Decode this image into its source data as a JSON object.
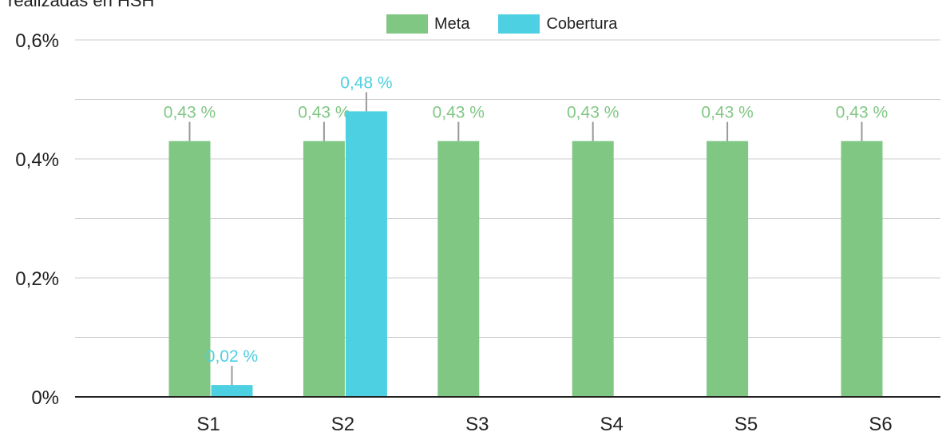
{
  "chart_data": {
    "type": "bar",
    "title": "realizadas en HSH",
    "categories": [
      "S1",
      "S2",
      "S3",
      "S4",
      "S5",
      "S6"
    ],
    "series": [
      {
        "name": "Meta",
        "color": "#81c784",
        "values": [
          0.43,
          0.43,
          0.43,
          0.43,
          0.43,
          0.43
        ],
        "labels": [
          "0,43 %",
          "0,43 %",
          "0,43 %",
          "0,43 %",
          "0,43 %",
          "0,43 %"
        ]
      },
      {
        "name": "Cobertura",
        "color": "#4dd0e1",
        "values": [
          0.02,
          0.48,
          null,
          null,
          null,
          null
        ],
        "labels": [
          "0,02 %",
          "0,48 %",
          null,
          null,
          null,
          null
        ]
      }
    ],
    "ylim": [
      0,
      0.6
    ],
    "yticks": [
      0,
      0.2,
      0.4,
      0.6
    ],
    "ytick_labels": [
      "0%",
      "0,2%",
      "0,4%",
      "0,6%"
    ],
    "xlabel": "",
    "ylabel": "",
    "grid": true,
    "legend": "top-center"
  }
}
